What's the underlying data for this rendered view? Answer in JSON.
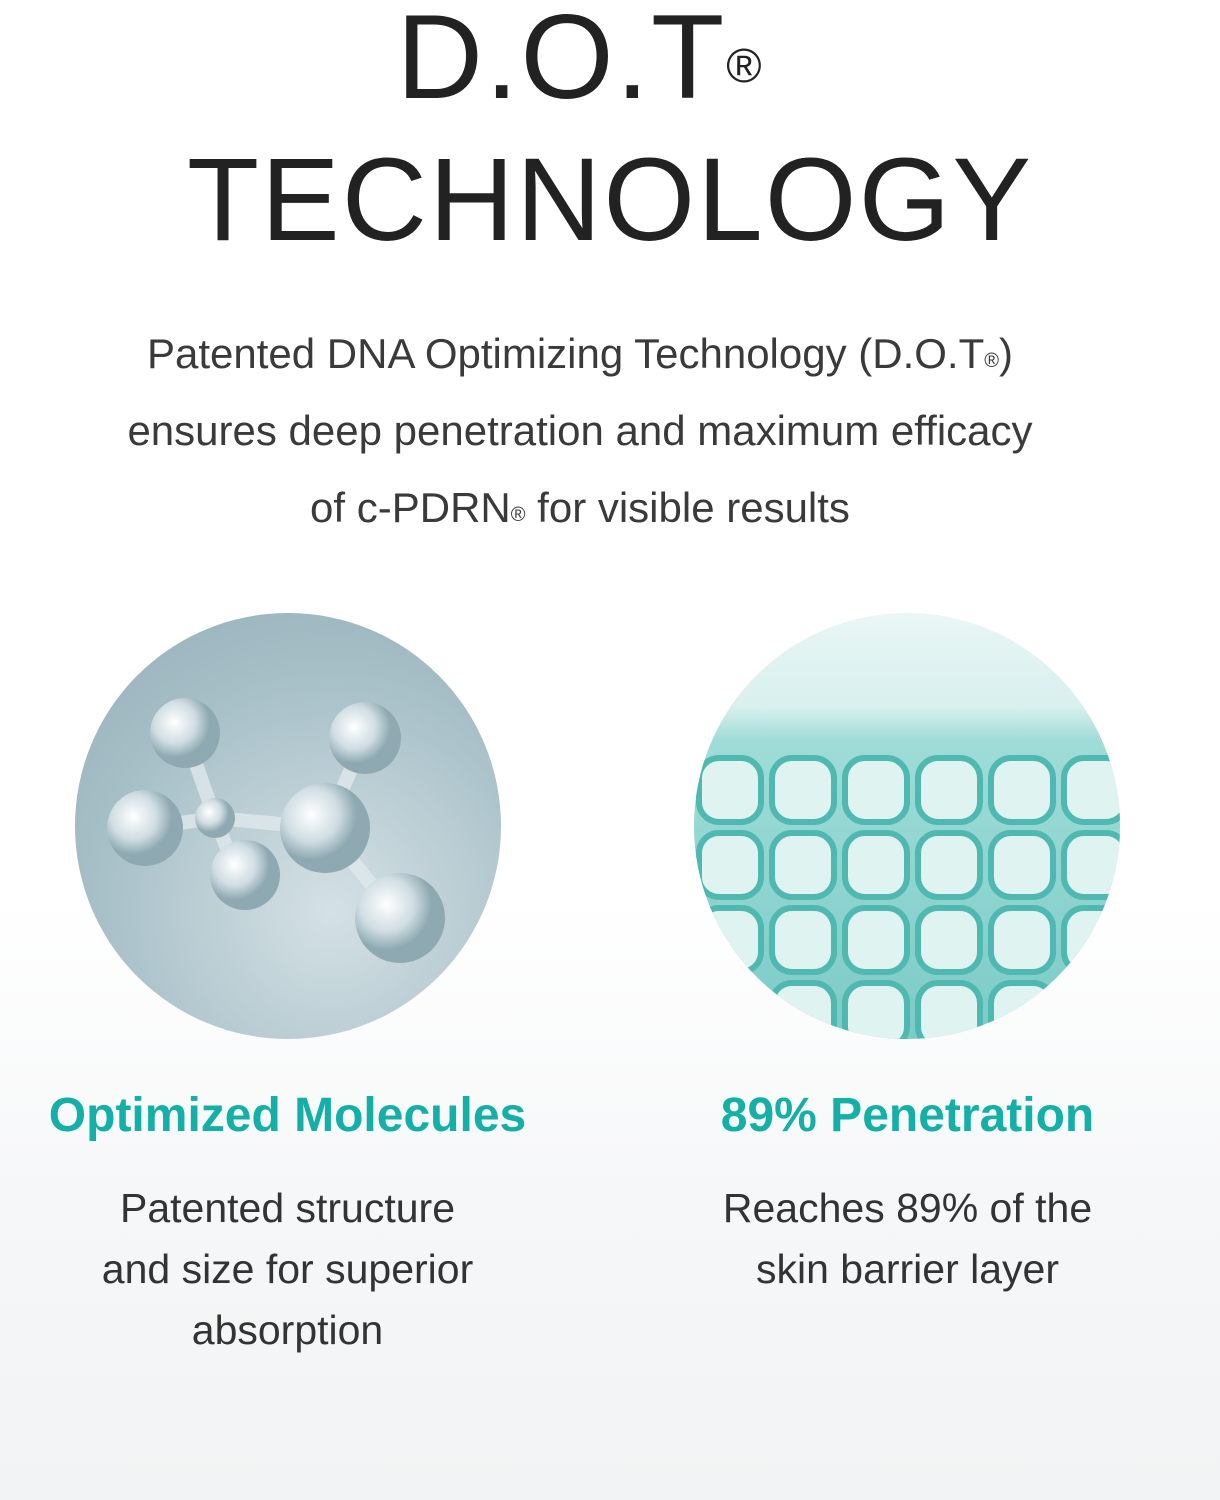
{
  "header": {
    "title_line1": "D.O.T",
    "title_mark": "®",
    "title_line2": "TECHNOLOGY"
  },
  "intro": {
    "line1a": "Patented DNA Optimizing Technology (D.O.T",
    "line1_mark": "®",
    "line1b": ")",
    "line2": "ensures deep penetration and maximum efficacy",
    "line3a": "of c-PDRN",
    "line3_mark": "®",
    "line3b": " for visible results"
  },
  "features": [
    {
      "title": "Optimized Molecules",
      "lines": [
        "Patented structure",
        "and size for superior",
        "absorption"
      ],
      "image": "molecule-image"
    },
    {
      "title": "89% Penetration",
      "lines": [
        "Reaches 89% of the",
        "skin barrier layer"
      ],
      "image": "skin-cells-image"
    }
  ],
  "colors": {
    "accent": "#14b0a8",
    "title": "#222222"
  }
}
